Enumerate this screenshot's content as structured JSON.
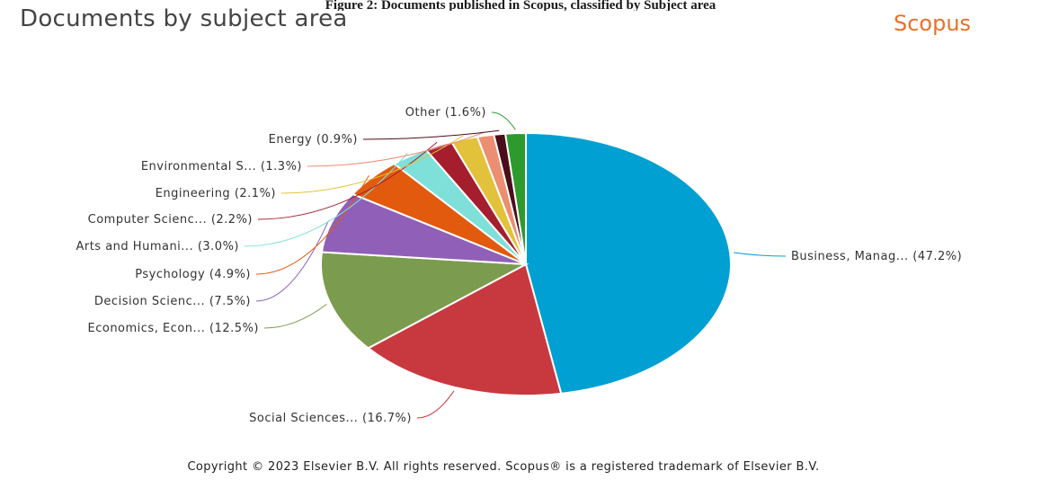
{
  "caption": "Figure 2: Documents published in Scopus, classified by Subject area",
  "header": {
    "title": "Documents by subject area",
    "brand": "Scopus"
  },
  "chart_data": {
    "type": "pie",
    "title": "Documents by subject area",
    "start_angle_deg": 0,
    "direction": "clockwise",
    "slices": [
      {
        "label": "Business, Manag... (47.2%)",
        "value": 47.2,
        "color": "#00a0d2"
      },
      {
        "label": "Social Sciences... (16.7%)",
        "value": 16.7,
        "color": "#c8393f"
      },
      {
        "label": "Economics, Econ... (12.5%)",
        "value": 12.5,
        "color": "#7b9c4e"
      },
      {
        "label": "Decision Scienc... (7.5%)",
        "value": 7.5,
        "color": "#9060b8"
      },
      {
        "label": "Psychology (4.9%)",
        "value": 4.9,
        "color": "#e25a0e"
      },
      {
        "label": "Arts and Humani... (3.0%)",
        "value": 3.0,
        "color": "#7ee0d8"
      },
      {
        "label": "Computer Scienc... (2.2%)",
        "value": 2.2,
        "color": "#a41e2e"
      },
      {
        "label": "Engineering (2.1%)",
        "value": 2.1,
        "color": "#e2c23a"
      },
      {
        "label": "Environmental S... (1.3%)",
        "value": 1.3,
        "color": "#ec8e72"
      },
      {
        "label": "Energy (0.9%)",
        "value": 0.9,
        "color": "#4a0e1a"
      },
      {
        "label": "Other (1.6%)",
        "value": 1.6,
        "color": "#2e9a2e"
      }
    ]
  },
  "footer": {
    "copyright": "Copyright © 2023 Elsevier B.V. All rights reserved. Scopus® is a registered trademark of Elsevier B.V."
  }
}
